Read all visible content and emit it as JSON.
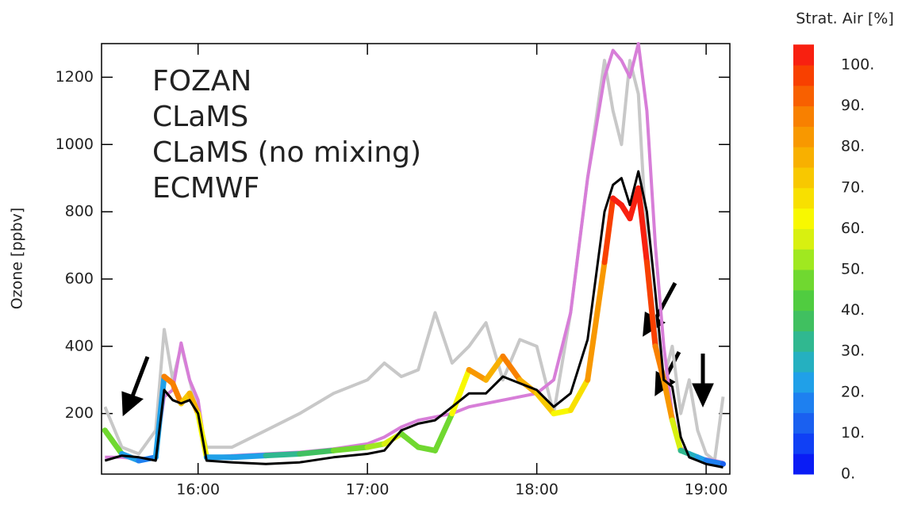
{
  "chart_data": {
    "type": "line",
    "y_label": "Ozone  [ppbv]",
    "x": [
      15.45,
      15.55,
      15.65,
      15.75,
      15.8,
      15.85,
      15.9,
      15.95,
      16.0,
      16.05,
      16.2,
      16.4,
      16.6,
      16.8,
      17.0,
      17.1,
      17.2,
      17.3,
      17.4,
      17.5,
      17.6,
      17.7,
      17.8,
      17.9,
      18.0,
      18.1,
      18.2,
      18.3,
      18.4,
      18.45,
      18.5,
      18.55,
      18.6,
      18.65,
      18.7,
      18.75,
      18.8,
      18.85,
      18.9,
      18.95,
      19.0,
      19.05,
      19.1
    ],
    "xlim": [
      15.43,
      19.14
    ],
    "xticks": [
      {
        "value": 16,
        "label": "16:00"
      },
      {
        "value": 17,
        "label": "17:00"
      },
      {
        "value": 18,
        "label": "18:00"
      },
      {
        "value": 19,
        "label": "19:00"
      }
    ],
    "ylim": [
      20,
      1300
    ],
    "yticks": [
      200,
      400,
      600,
      800,
      1000,
      1200
    ],
    "series": [
      {
        "name": "CLaMS (no mixing)",
        "color": "#c8c8c8",
        "values": [
          220,
          100,
          80,
          150,
          450,
          300,
          400,
          300,
          200,
          100,
          100,
          150,
          200,
          260,
          300,
          350,
          310,
          330,
          500,
          350,
          400,
          470,
          300,
          420,
          400,
          200,
          500,
          900,
          1250,
          1100,
          1000,
          1250,
          1150,
          700,
          450,
          300,
          400,
          200,
          300,
          150,
          80,
          60,
          250
        ]
      },
      {
        "name": "ECMWF",
        "color": "#d77ed8",
        "values": [
          70,
          70,
          65,
          70,
          250,
          270,
          410,
          300,
          240,
          70,
          75,
          80,
          85,
          95,
          110,
          130,
          160,
          180,
          190,
          200,
          220,
          230,
          240,
          250,
          260,
          300,
          500,
          900,
          1200,
          1280,
          1250,
          1200,
          1300,
          1100,
          700,
          400,
          200,
          100,
          80,
          70,
          65,
          60,
          55
        ]
      },
      {
        "name": "CLaMS",
        "color": "#e8231a",
        "colored_by": "strat_air",
        "values": [
          150,
          80,
          60,
          70,
          310,
          290,
          230,
          260,
          200,
          70,
          70,
          75,
          80,
          90,
          100,
          110,
          140,
          100,
          90,
          200,
          330,
          300,
          370,
          300,
          260,
          200,
          210,
          300,
          650,
          840,
          820,
          780,
          870,
          650,
          400,
          300,
          180,
          90,
          80,
          70,
          60,
          55,
          50
        ],
        "strat_air": [
          45,
          20,
          15,
          20,
          85,
          85,
          70,
          75,
          60,
          20,
          22,
          30,
          35,
          45,
          50,
          55,
          45,
          48,
          45,
          60,
          80,
          75,
          85,
          75,
          70,
          60,
          65,
          80,
          95,
          100,
          100,
          100,
          100,
          95,
          85,
          80,
          55,
          30,
          25,
          20,
          15,
          15,
          10
        ]
      },
      {
        "name": "FOZAN",
        "color": "#000000",
        "values": [
          60,
          75,
          70,
          60,
          270,
          240,
          230,
          240,
          200,
          60,
          55,
          50,
          55,
          70,
          80,
          90,
          150,
          170,
          180,
          220,
          260,
          260,
          310,
          290,
          270,
          220,
          260,
          420,
          800,
          880,
          900,
          820,
          920,
          800,
          560,
          300,
          280,
          130,
          70,
          60,
          50,
          45,
          40
        ]
      }
    ],
    "legend_order": [
      3,
      2,
      0,
      1
    ],
    "colorbar": {
      "title": "Strat. Air [%]",
      "lim": [
        0,
        105
      ],
      "ticks": [
        {
          "value": 0,
          "label": "0."
        },
        {
          "value": 10,
          "label": "10."
        },
        {
          "value": 20,
          "label": "20."
        },
        {
          "value": 30,
          "label": "30."
        },
        {
          "value": 40,
          "label": "40."
        },
        {
          "value": 50,
          "label": "50."
        },
        {
          "value": 60,
          "label": "60."
        },
        {
          "value": 70,
          "label": "70."
        },
        {
          "value": 80,
          "label": "80."
        },
        {
          "value": 90,
          "label": "90."
        },
        {
          "value": 100,
          "label": "100."
        }
      ],
      "colors": [
        "#0a1cf5",
        "#1040f5",
        "#1a60f0",
        "#1e80f0",
        "#20a0e8",
        "#25b0c0",
        "#30b890",
        "#40c060",
        "#50cc40",
        "#70d830",
        "#a0e820",
        "#d8f010",
        "#f8f800",
        "#f8e000",
        "#f8c800",
        "#f8b000",
        "#f89800",
        "#f88000",
        "#f86000",
        "#f84000",
        "#f82010"
      ]
    }
  }
}
